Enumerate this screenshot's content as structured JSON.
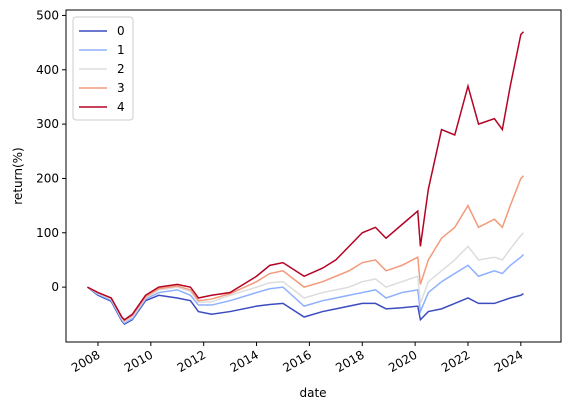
{
  "chart_data": {
    "type": "line",
    "x_label": "date",
    "y_label": "return(%)",
    "x": [
      2007.6,
      2008.0,
      2008.5,
      2008.9,
      2009.0,
      2009.3,
      2009.8,
      2010.3,
      2011.0,
      2011.5,
      2011.8,
      2012.3,
      2013.0,
      2014.0,
      2014.5,
      2015.0,
      2015.8,
      2016.5,
      2017.0,
      2017.5,
      2018.0,
      2018.5,
      2018.9,
      2019.5,
      2020.1,
      2020.2,
      2020.5,
      2021.0,
      2021.5,
      2022.0,
      2022.4,
      2023.0,
      2023.3,
      2023.6,
      2024.0,
      2024.1
    ],
    "series": [
      {
        "name": "0",
        "color": "#3b4cc0",
        "values": [
          0,
          -15,
          -26,
          -62,
          -68,
          -60,
          -25,
          -15,
          -20,
          -25,
          -45,
          -50,
          -45,
          -35,
          -32,
          -30,
          -55,
          -45,
          -40,
          -35,
          -30,
          -30,
          -40,
          -38,
          -35,
          -60,
          -45,
          -40,
          -30,
          -20,
          -30,
          -30,
          -25,
          -20,
          -15,
          -12
        ]
      },
      {
        "name": "1",
        "color": "#8db0fe",
        "values": [
          0,
          -13,
          -24,
          -60,
          -66,
          -58,
          -22,
          -10,
          -5,
          -15,
          -33,
          -33,
          -25,
          -10,
          -3,
          0,
          -35,
          -25,
          -20,
          -15,
          -10,
          -5,
          -20,
          -10,
          -5,
          -45,
          -10,
          10,
          25,
          40,
          20,
          30,
          25,
          40,
          55,
          60
        ]
      },
      {
        "name": "2",
        "color": "#dddddd",
        "values": [
          0,
          -12,
          -22,
          -58,
          -64,
          -55,
          -20,
          -5,
          0,
          -8,
          -28,
          -27,
          -15,
          0,
          8,
          10,
          -20,
          -10,
          -5,
          0,
          10,
          15,
          0,
          10,
          20,
          -30,
          10,
          30,
          50,
          75,
          50,
          55,
          50,
          70,
          95,
          100
        ]
      },
      {
        "name": "3",
        "color": "#f49a7b",
        "values": [
          0,
          -10,
          -20,
          -55,
          -62,
          -52,
          -18,
          -3,
          2,
          -5,
          -25,
          -22,
          -12,
          10,
          25,
          30,
          0,
          10,
          20,
          30,
          45,
          50,
          30,
          40,
          55,
          5,
          50,
          90,
          110,
          150,
          110,
          125,
          110,
          150,
          200,
          205
        ]
      },
      {
        "name": "4",
        "color": "#b40426",
        "values": [
          0,
          -10,
          -20,
          -55,
          -60,
          -50,
          -15,
          0,
          5,
          0,
          -20,
          -15,
          -10,
          20,
          40,
          45,
          20,
          35,
          50,
          75,
          100,
          110,
          90,
          115,
          140,
          75,
          180,
          290,
          280,
          370,
          300,
          310,
          290,
          370,
          465,
          470
        ]
      }
    ],
    "xlim": [
      2006.79,
      2025.52
    ],
    "xticks": [
      2008,
      2010,
      2012,
      2014,
      2016,
      2018,
      2020,
      2022,
      2024
    ],
    "ylim": [
      -101,
      510
    ],
    "yticks": [
      0,
      100,
      200,
      300,
      400,
      500
    ],
    "grid": false,
    "legend": "upper-left"
  }
}
